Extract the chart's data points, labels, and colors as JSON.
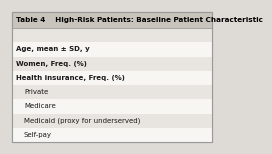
{
  "title": "Table 4    High-Risk Patients: Baseline Patient Characteristic",
  "title_fontsize": 5.2,
  "title_bg": "#c8c4bc",
  "title_text_color": "#000000",
  "rows": [
    {
      "label": "",
      "indent": 0,
      "bold": false,
      "shaded": true
    },
    {
      "label": "Age, mean ± SD, y",
      "indent": 0,
      "bold": true,
      "shaded": false
    },
    {
      "label": "Women, Freq. (%)",
      "indent": 0,
      "bold": true,
      "shaded": true
    },
    {
      "label": "Health insurance, Freq. (%)",
      "indent": 0,
      "bold": true,
      "shaded": false
    },
    {
      "label": "Private",
      "indent": 1,
      "bold": false,
      "shaded": true
    },
    {
      "label": "Medicare",
      "indent": 1,
      "bold": false,
      "shaded": false
    },
    {
      "label": "Medicaid (proxy for underserved)",
      "indent": 1,
      "bold": false,
      "shaded": true
    },
    {
      "label": "Self-pay",
      "indent": 1,
      "bold": false,
      "shaded": false
    }
  ],
  "shaded_color": "#e8e5e0",
  "white_color": "#f8f6f3",
  "border_color": "#999999",
  "text_color": "#1a1a1a",
  "row_fontsize": 5.0,
  "fig_bg": "#e0ddd8",
  "outer_bg": "#dedad5"
}
